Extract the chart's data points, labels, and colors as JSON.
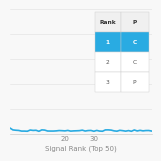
{
  "title": "",
  "xlabel": "Signal Rank (Top 50)",
  "ylabel": "",
  "xlim": [
    1,
    50
  ],
  "ylim": [
    0,
    50
  ],
  "xticks": [
    20,
    30
  ],
  "line_color": "#29ABE2",
  "line_width": 1.2,
  "background_color": "#f8f8f8",
  "grid_color": "#e0e0e0",
  "table_header": [
    "Rank",
    "P"
  ],
  "table_rows": [
    [
      "1",
      "C"
    ],
    [
      "2",
      "C"
    ],
    [
      "3",
      "P"
    ]
  ],
  "table_highlight_row": 0,
  "table_highlight_color": "#29ABE2",
  "table_text_color": "#555555",
  "xlabel_fontsize": 5,
  "tick_fontsize": 5,
  "table_fontsize": 4.2
}
